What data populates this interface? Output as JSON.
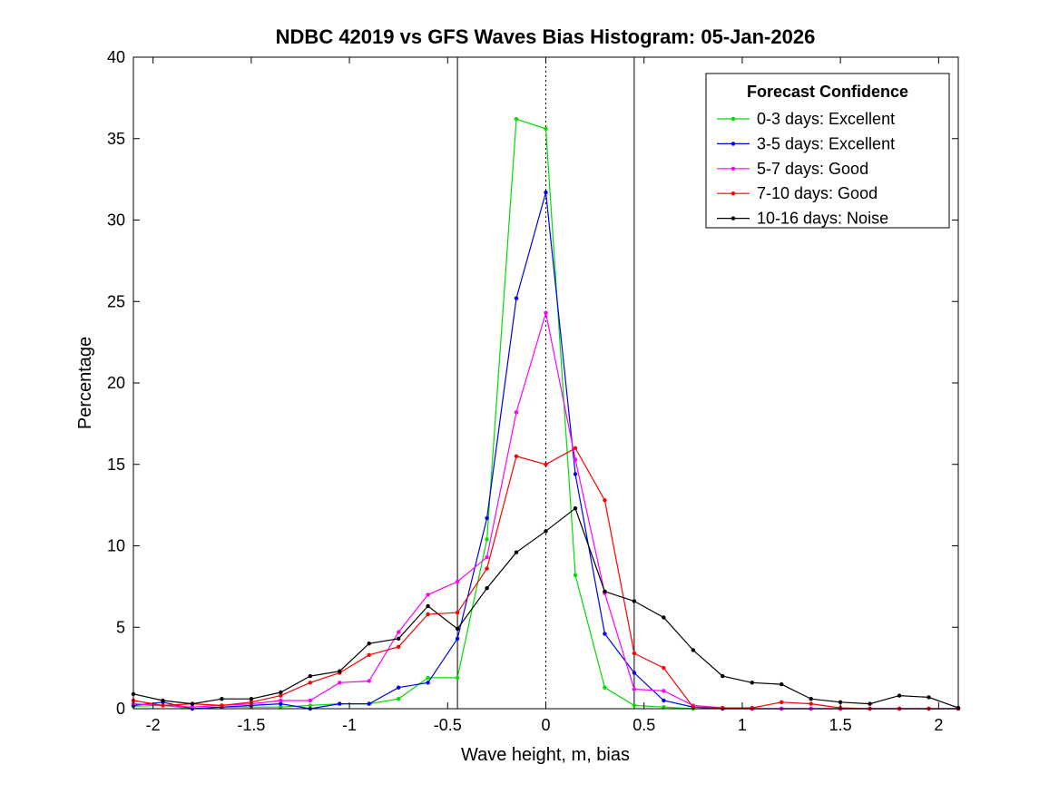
{
  "chart_data": {
    "type": "line",
    "title": "NDBC 42019 vs GFS Waves Bias Histogram: 05-Jan-2026",
    "xlabel": "Wave height, m, bias",
    "ylabel": "Percentage",
    "xlim": [
      -2.1,
      2.1
    ],
    "ylim": [
      0,
      40
    ],
    "grid": false,
    "x_ticks": [
      -2,
      -1.5,
      -1,
      -0.5,
      0,
      0.5,
      1,
      1.5,
      2
    ],
    "x_tick_labels": [
      "-2",
      "-1.5",
      "-1",
      "-0.5",
      "0",
      "0.5",
      "1",
      "1.5",
      "2"
    ],
    "y_ticks": [
      0,
      5,
      10,
      15,
      20,
      25,
      30,
      35,
      40
    ],
    "y_tick_labels": [
      "0",
      "5",
      "10",
      "15",
      "20",
      "25",
      "30",
      "35",
      "40"
    ],
    "legend_title": "Forecast Confidence",
    "legend_position": "top-right",
    "x": [
      -2.1,
      -1.95,
      -1.8,
      -1.65,
      -1.5,
      -1.35,
      -1.2,
      -1.05,
      -0.9,
      -0.75,
      -0.6,
      -0.45,
      -0.3,
      -0.15,
      0,
      0.15,
      0.3,
      0.45,
      0.6,
      0.75,
      0.9,
      1.05,
      1.2,
      1.35,
      1.5,
      1.65,
      1.8,
      1.95,
      2.1
    ],
    "series": [
      {
        "name": "0-3 days: Excellent",
        "color": "#00dd00",
        "values": [
          0.15,
          0.2,
          0,
          0.1,
          0.1,
          0.1,
          0.2,
          0.3,
          0.3,
          0.6,
          1.9,
          1.9,
          10.4,
          36.2,
          35.6,
          8.2,
          1.3,
          0.2,
          0.1,
          0,
          0,
          0,
          0,
          0,
          0,
          0,
          0,
          0,
          0
        ]
      },
      {
        "name": "3-5 days: Excellent",
        "color": "#0000ee",
        "values": [
          0.2,
          0.4,
          0,
          0.1,
          0.2,
          0.3,
          0,
          0.3,
          0.3,
          1.3,
          1.6,
          4.3,
          11.7,
          25.2,
          31.7,
          14.4,
          4.6,
          2.2,
          0.5,
          0.1,
          0,
          0,
          0,
          0,
          0,
          0,
          0,
          0,
          0
        ]
      },
      {
        "name": "5-7 days: Good",
        "color": "#ff00ff",
        "values": [
          0.3,
          0.2,
          0.1,
          0.2,
          0.3,
          0.5,
          0.5,
          1.6,
          1.7,
          4.7,
          7.0,
          7.8,
          9.3,
          18.2,
          24.3,
          15.3,
          7.1,
          1.2,
          1.1,
          0.2,
          0.05,
          0,
          0,
          0,
          0,
          0,
          0,
          0,
          0
        ]
      },
      {
        "name": "7-10 days: Good",
        "color": "#ff0000",
        "values": [
          0.5,
          0.2,
          0.3,
          0.2,
          0.4,
          0.8,
          1.6,
          2.2,
          3.3,
          3.8,
          5.8,
          5.9,
          8.6,
          15.5,
          15.0,
          16.0,
          12.8,
          3.4,
          2.5,
          0.1,
          0.05,
          0.05,
          0.4,
          0.3,
          0.05,
          0,
          0,
          0,
          0
        ]
      },
      {
        "name": "10-16 days: Noise",
        "color": "#000000",
        "values": [
          0.9,
          0.5,
          0.3,
          0.6,
          0.6,
          1.0,
          2.0,
          2.3,
          4.0,
          4.3,
          6.3,
          4.9,
          7.4,
          9.6,
          10.9,
          12.3,
          7.2,
          6.6,
          5.6,
          3.6,
          2.0,
          1.6,
          1.5,
          0.6,
          0.4,
          0.3,
          0.8,
          0.7,
          0.05
        ]
      }
    ],
    "reference_lines": [
      {
        "x": -0.45,
        "style": "solid",
        "color": "#000000"
      },
      {
        "x": 0,
        "style": "dotted",
        "color": "#000000"
      },
      {
        "x": 0.45,
        "style": "solid",
        "color": "#000000"
      }
    ]
  }
}
